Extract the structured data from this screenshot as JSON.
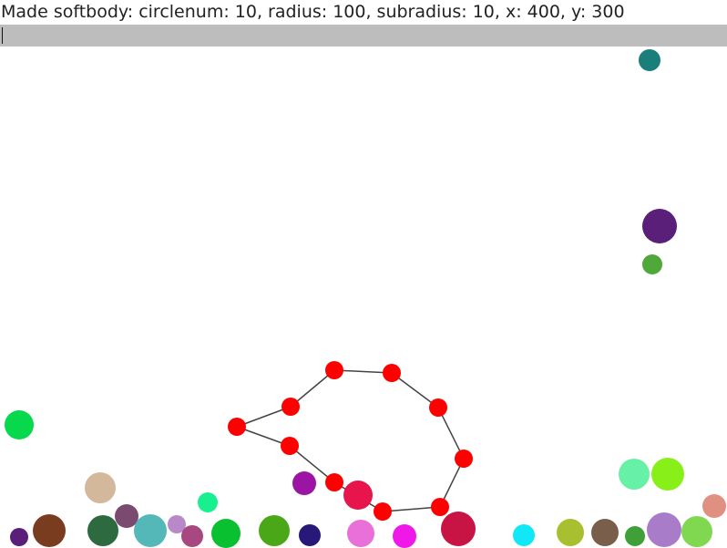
{
  "status": {
    "message": "Made softbody: circlenum: 10, radius: 100, subradius: 10, x: 400, y: 300"
  },
  "console": {
    "input_value": ""
  },
  "softbody": {
    "color": "#ff0000",
    "edge_color": "#444444"
  },
  "balls": [
    {
      "color": "#1a7f7a"
    },
    {
      "color": "#5a1f78"
    },
    {
      "color": "#4fa83a"
    },
    {
      "color": "#08d84c"
    },
    {
      "color": "#d4b89c"
    },
    {
      "color": "#9c14a4"
    },
    {
      "color": "#e8144c"
    },
    {
      "color": "#18f090"
    },
    {
      "color": "#66f0a8"
    },
    {
      "color": "#88f018"
    },
    {
      "color": "#e09080"
    },
    {
      "color": "#5a1f78"
    },
    {
      "color": "#7a3c1e"
    },
    {
      "color": "#2e6a40"
    },
    {
      "color": "#7a4a70"
    },
    {
      "color": "#54b8b8"
    },
    {
      "color": "#b888c8"
    },
    {
      "color": "#a84880"
    },
    {
      "color": "#08c030"
    },
    {
      "color": "#4aa818"
    },
    {
      "color": "#281878"
    },
    {
      "color": "#e870d8"
    },
    {
      "color": "#f018e8"
    },
    {
      "color": "#c81444"
    },
    {
      "color": "#10e8f8"
    },
    {
      "color": "#a8c030"
    },
    {
      "color": "#7a5e4c"
    },
    {
      "color": "#40a038"
    },
    {
      "color": "#a87cc8"
    },
    {
      "color": "#80d850"
    }
  ]
}
